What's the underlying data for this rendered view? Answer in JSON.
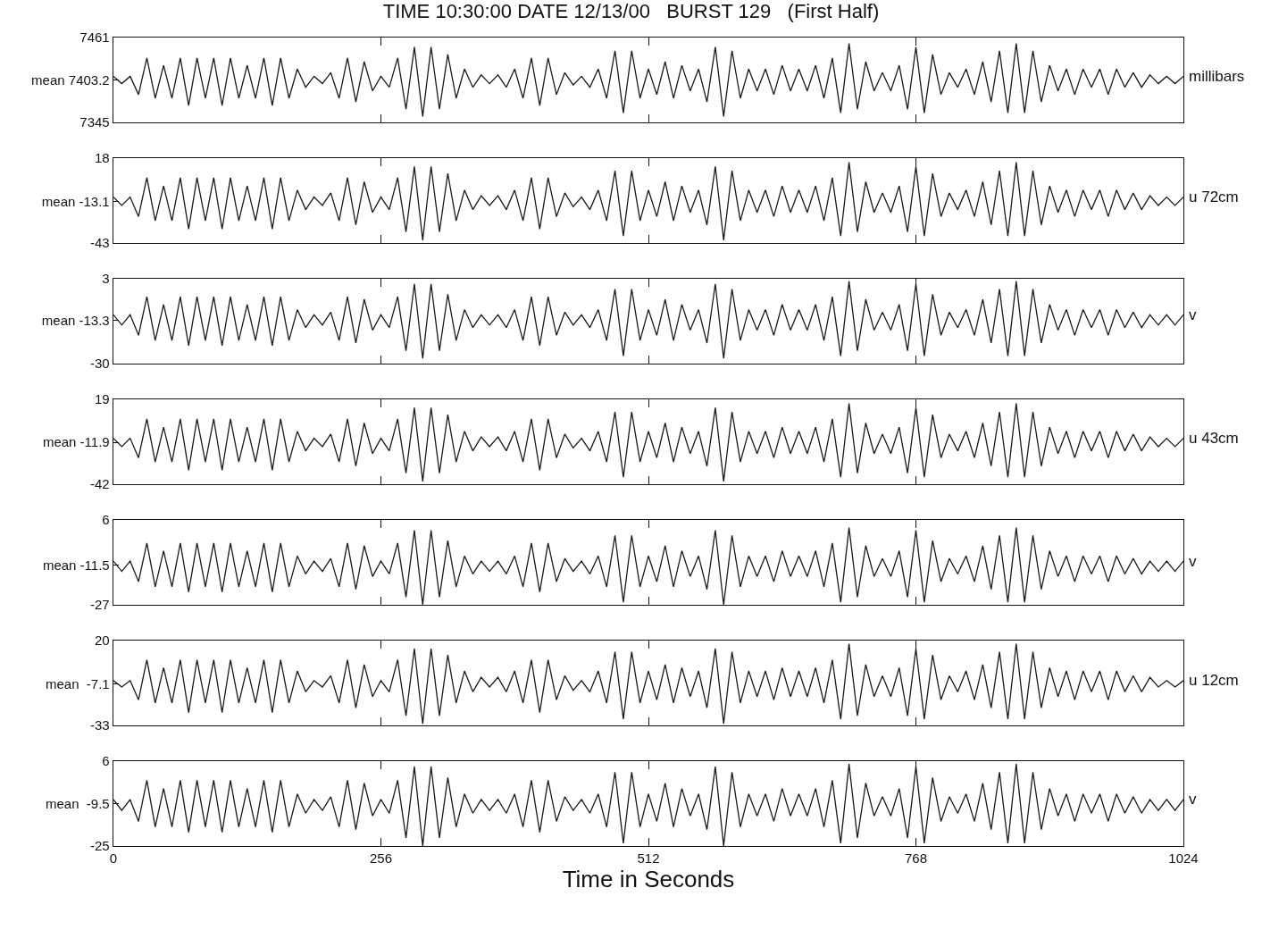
{
  "chart_data": [
    {
      "type": "line",
      "title": "TIME 10:30:00 DATE 12/13/00   BURST 129   (First Half)",
      "x": [
        0,
        8,
        16,
        24,
        32,
        40,
        48,
        56,
        64,
        72,
        80,
        88,
        96,
        104,
        112,
        120,
        128,
        136,
        144,
        152,
        160,
        168,
        176,
        184,
        192,
        200,
        208,
        216,
        224,
        232,
        240,
        248,
        256,
        264,
        272,
        280,
        288,
        296,
        304,
        312,
        320,
        328,
        336,
        344,
        352,
        360,
        368,
        376,
        384,
        392,
        400,
        408,
        416,
        424,
        432,
        440,
        448,
        456,
        464,
        472,
        480,
        488,
        496,
        504,
        512,
        520,
        528,
        536,
        544,
        552,
        560,
        568,
        576,
        584,
        592,
        600,
        608,
        616,
        624,
        632,
        640,
        648,
        656,
        664,
        672,
        680,
        688,
        696,
        704,
        712,
        720,
        728,
        736,
        744,
        752,
        760,
        768,
        776,
        784,
        792,
        800,
        808,
        816,
        824,
        832,
        840,
        848,
        856,
        864,
        872,
        880,
        888,
        896,
        904,
        912,
        920,
        928,
        936,
        944,
        952,
        960,
        968,
        976,
        984,
        992,
        1000,
        1008,
        1016,
        1024
      ],
      "series": [
        {
          "name": "millibars",
          "color": "#1a1a1a",
          "values": [
            7408,
            7398,
            7408,
            7383,
            7433,
            7378,
            7423,
            7378,
            7433,
            7368,
            7433,
            7378,
            7433,
            7368,
            7433,
            7378,
            7423,
            7378,
            7433,
            7368,
            7433,
            7378,
            7418,
            7393,
            7408,
            7398,
            7413,
            7378,
            7433,
            7373,
            7428,
            7388,
            7408,
            7393,
            7433,
            7363,
            7448,
            7353,
            7448,
            7363,
            7438,
            7378,
            7418,
            7393,
            7410,
            7398,
            7410,
            7393,
            7418,
            7378,
            7433,
            7368,
            7433,
            7383,
            7413,
            7396,
            7408,
            7393,
            7418,
            7378,
            7443,
            7358,
            7443,
            7378,
            7418,
            7383,
            7428,
            7378,
            7423,
            7388,
            7418,
            7373,
            7448,
            7353,
            7443,
            7378,
            7418,
            7388,
            7418,
            7383,
            7423,
            7388,
            7418,
            7388,
            7423,
            7378,
            7433,
            7358,
            7453,
            7363,
            7428,
            7388,
            7413,
            7388,
            7423,
            7363,
            7448,
            7358,
            7438,
            7383,
            7413,
            7393,
            7418,
            7383,
            7428,
            7373,
            7443,
            7358,
            7453,
            7358,
            7443,
            7373,
            7423,
            7388,
            7418,
            7383,
            7418,
            7393,
            7418,
            7383,
            7418,
            7393,
            7413,
            7393,
            7410,
            7398,
            7408,
            7398,
            7408
          ]
        }
      ],
      "xlim": [
        0,
        1024
      ],
      "xticks": [
        0,
        256,
        512,
        768,
        1024
      ],
      "ylim": [
        7345,
        7461
      ],
      "yticks": [
        7345,
        {
          "value": 7403.2,
          "label": "mean 7403.2"
        },
        7461
      ],
      "tick_labels": "y"
    },
    {
      "type": "line",
      "x": [
        0,
        8,
        16,
        24,
        32,
        40,
        48,
        56,
        64,
        72,
        80,
        88,
        96,
        104,
        112,
        120,
        128,
        136,
        144,
        152,
        160,
        168,
        176,
        184,
        192,
        200,
        208,
        216,
        224,
        232,
        240,
        248,
        256,
        264,
        272,
        280,
        288,
        296,
        304,
        312,
        320,
        328,
        336,
        344,
        352,
        360,
        368,
        376,
        384,
        392,
        400,
        408,
        416,
        424,
        432,
        440,
        448,
        456,
        464,
        472,
        480,
        488,
        496,
        504,
        512,
        520,
        528,
        536,
        544,
        552,
        560,
        568,
        576,
        584,
        592,
        600,
        608,
        616,
        624,
        632,
        640,
        648,
        656,
        664,
        672,
        680,
        688,
        696,
        704,
        712,
        720,
        728,
        736,
        744,
        752,
        760,
        768,
        776,
        784,
        792,
        800,
        808,
        816,
        824,
        832,
        840,
        848,
        856,
        864,
        872,
        880,
        888,
        896,
        904,
        912,
        920,
        928,
        936,
        944,
        952,
        960,
        968,
        976,
        984,
        992,
        1000,
        1008,
        1016,
        1024
      ],
      "series": [
        {
          "name": "u 72cm",
          "color": "#1a1a1a",
          "values": [
            -10,
            -16,
            -10,
            -24,
            4,
            -27,
            -2,
            -27,
            4,
            -33,
            4,
            -27,
            4,
            -33,
            4,
            -27,
            -2,
            -27,
            4,
            -33,
            4,
            -27,
            -5,
            -19,
            -10,
            -16,
            -7,
            -27,
            4,
            -30,
            1,
            -21,
            -10,
            -19,
            4,
            -35,
            12,
            -41,
            12,
            -35,
            7,
            -27,
            -5,
            -19,
            -9,
            -16,
            -9,
            -19,
            -5,
            -27,
            4,
            -33,
            4,
            -24,
            -7,
            -17,
            -10,
            -19,
            -5,
            -27,
            9,
            -38,
            9,
            -27,
            -5,
            -24,
            1,
            -27,
            -2,
            -21,
            -5,
            -30,
            12,
            -41,
            9,
            -27,
            -5,
            -21,
            -5,
            -24,
            -2,
            -21,
            -5,
            -21,
            -2,
            -27,
            4,
            -38,
            15,
            -35,
            1,
            -21,
            -7,
            -21,
            -2,
            -35,
            12,
            -38,
            7,
            -24,
            -7,
            -19,
            -5,
            -24,
            1,
            -30,
            9,
            -38,
            15,
            -38,
            9,
            -30,
            -2,
            -21,
            -5,
            -24,
            -5,
            -19,
            -5,
            -24,
            -5,
            -19,
            -7,
            -19,
            -9,
            -16,
            -10,
            -16,
            -10
          ]
        }
      ],
      "xlim": [
        0,
        1024
      ],
      "xticks": [
        0,
        256,
        512,
        768,
        1024
      ],
      "ylim": [
        -43,
        18
      ],
      "yticks": [
        -43,
        {
          "value": -13.1,
          "label": "mean -13.1"
        },
        18
      ],
      "tick_labels": "y"
    },
    {
      "type": "line",
      "x": [
        0,
        8,
        16,
        24,
        32,
        40,
        48,
        56,
        64,
        72,
        80,
        88,
        96,
        104,
        112,
        120,
        128,
        136,
        144,
        152,
        160,
        168,
        176,
        184,
        192,
        200,
        208,
        216,
        224,
        232,
        240,
        248,
        256,
        264,
        272,
        280,
        288,
        296,
        304,
        312,
        320,
        328,
        336,
        344,
        352,
        360,
        368,
        376,
        384,
        392,
        400,
        408,
        416,
        424,
        432,
        440,
        448,
        456,
        464,
        472,
        480,
        488,
        496,
        504,
        512,
        520,
        528,
        536,
        544,
        552,
        560,
        568,
        576,
        584,
        592,
        600,
        608,
        616,
        624,
        632,
        640,
        648,
        656,
        664,
        672,
        680,
        688,
        696,
        704,
        712,
        720,
        728,
        736,
        744,
        752,
        760,
        768,
        776,
        784,
        792,
        800,
        808,
        816,
        824,
        832,
        840,
        848,
        856,
        864,
        872,
        880,
        888,
        896,
        904,
        912,
        920,
        928,
        936,
        944,
        952,
        960,
        968,
        976,
        984,
        992,
        1000,
        1008,
        1016,
        1024
      ],
      "series": [
        {
          "name": "v",
          "color": "#1a1a1a",
          "values": [
            -11,
            -15,
            -11,
            -19,
            -4,
            -21,
            -7,
            -21,
            -4,
            -23,
            -4,
            -21,
            -4,
            -23,
            -4,
            -21,
            -7,
            -21,
            -4,
            -23,
            -4,
            -21,
            -9,
            -16,
            -11,
            -15,
            -10,
            -21,
            -4,
            -22,
            -5,
            -17,
            -11,
            -16,
            -4,
            -25,
            1,
            -28,
            1,
            -25,
            -3,
            -21,
            -9,
            -16,
            -11,
            -15,
            -11,
            -16,
            -9,
            -21,
            -4,
            -23,
            -4,
            -19,
            -10,
            -15,
            -11,
            -16,
            -9,
            -21,
            -1,
            -27,
            -1,
            -21,
            -9,
            -19,
            -5,
            -21,
            -7,
            -17,
            -9,
            -22,
            1,
            -28,
            -1,
            -21,
            -9,
            -17,
            -9,
            -19,
            -7,
            -17,
            -9,
            -17,
            -7,
            -21,
            -4,
            -27,
            2,
            -25,
            -5,
            -17,
            -10,
            -17,
            -7,
            -25,
            1,
            -27,
            -3,
            -19,
            -10,
            -16,
            -9,
            -19,
            -5,
            -22,
            -1,
            -27,
            2,
            -27,
            -1,
            -22,
            -7,
            -17,
            -9,
            -19,
            -9,
            -16,
            -9,
            -19,
            -9,
            -16,
            -10,
            -16,
            -11,
            -15,
            -11,
            -15,
            -11
          ]
        }
      ],
      "xlim": [
        0,
        1024
      ],
      "xticks": [
        0,
        256,
        512,
        768,
        1024
      ],
      "ylim": [
        -30,
        3
      ],
      "yticks": [
        -30,
        {
          "value": -13.3,
          "label": "mean -13.3"
        },
        3
      ],
      "tick_labels": "y"
    },
    {
      "type": "line",
      "x": [
        0,
        8,
        16,
        24,
        32,
        40,
        48,
        56,
        64,
        72,
        80,
        88,
        96,
        104,
        112,
        120,
        128,
        136,
        144,
        152,
        160,
        168,
        176,
        184,
        192,
        200,
        208,
        216,
        224,
        232,
        240,
        248,
        256,
        264,
        272,
        280,
        288,
        296,
        304,
        312,
        320,
        328,
        336,
        344,
        352,
        360,
        368,
        376,
        384,
        392,
        400,
        408,
        416,
        424,
        432,
        440,
        448,
        456,
        464,
        472,
        480,
        488,
        496,
        504,
        512,
        520,
        528,
        536,
        544,
        552,
        560,
        568,
        576,
        584,
        592,
        600,
        608,
        616,
        624,
        632,
        640,
        648,
        656,
        664,
        672,
        680,
        688,
        696,
        704,
        712,
        720,
        728,
        736,
        744,
        752,
        760,
        768,
        776,
        784,
        792,
        800,
        808,
        816,
        824,
        832,
        840,
        848,
        856,
        864,
        872,
        880,
        888,
        896,
        904,
        912,
        920,
        928,
        936,
        944,
        952,
        960,
        968,
        976,
        984,
        992,
        1000,
        1008,
        1016,
        1024
      ],
      "series": [
        {
          "name": "u 43cm",
          "color": "#1a1a1a",
          "values": [
            -9,
            -15,
            -9,
            -23,
            5,
            -26,
            -1,
            -26,
            5,
            -32,
            5,
            -26,
            5,
            -32,
            5,
            -26,
            -1,
            -26,
            5,
            -32,
            5,
            -26,
            -4,
            -18,
            -9,
            -15,
            -6,
            -26,
            5,
            -29,
            2,
            -20,
            -9,
            -18,
            5,
            -34,
            13,
            -40,
            13,
            -34,
            8,
            -26,
            -4,
            -18,
            -8,
            -15,
            -8,
            -18,
            -4,
            -26,
            5,
            -32,
            5,
            -23,
            -6,
            -16,
            -9,
            -18,
            -4,
            -26,
            10,
            -37,
            10,
            -26,
            -4,
            -23,
            2,
            -26,
            -1,
            -20,
            -4,
            -29,
            13,
            -40,
            10,
            -26,
            -4,
            -20,
            -4,
            -23,
            -1,
            -20,
            -4,
            -20,
            -1,
            -26,
            5,
            -37,
            16,
            -34,
            2,
            -20,
            -6,
            -20,
            -1,
            -34,
            13,
            -37,
            8,
            -23,
            -6,
            -18,
            -4,
            -23,
            2,
            -29,
            10,
            -37,
            16,
            -37,
            10,
            -29,
            -1,
            -20,
            -4,
            -23,
            -4,
            -18,
            -4,
            -23,
            -4,
            -18,
            -6,
            -18,
            -8,
            -15,
            -9,
            -15,
            -9
          ]
        }
      ],
      "xlim": [
        0,
        1024
      ],
      "xticks": [
        0,
        256,
        512,
        768,
        1024
      ],
      "ylim": [
        -42,
        19
      ],
      "yticks": [
        -42,
        {
          "value": -11.9,
          "label": "mean -11.9"
        },
        19
      ],
      "tick_labels": "y"
    },
    {
      "type": "line",
      "x": [
        0,
        8,
        16,
        24,
        32,
        40,
        48,
        56,
        64,
        72,
        80,
        88,
        96,
        104,
        112,
        120,
        128,
        136,
        144,
        152,
        160,
        168,
        176,
        184,
        192,
        200,
        208,
        216,
        224,
        232,
        240,
        248,
        256,
        264,
        272,
        280,
        288,
        296,
        304,
        312,
        320,
        328,
        336,
        344,
        352,
        360,
        368,
        376,
        384,
        392,
        400,
        408,
        416,
        424,
        432,
        440,
        448,
        456,
        464,
        472,
        480,
        488,
        496,
        504,
        512,
        520,
        528,
        536,
        544,
        552,
        560,
        568,
        576,
        584,
        592,
        600,
        608,
        616,
        624,
        632,
        640,
        648,
        656,
        664,
        672,
        680,
        688,
        696,
        704,
        712,
        720,
        728,
        736,
        744,
        752,
        760,
        768,
        776,
        784,
        792,
        800,
        808,
        816,
        824,
        832,
        840,
        848,
        856,
        864,
        872,
        880,
        888,
        896,
        904,
        912,
        920,
        928,
        936,
        944,
        952,
        960,
        968,
        976,
        984,
        992,
        1000,
        1008,
        1016,
        1024
      ],
      "series": [
        {
          "name": "v",
          "color": "#1a1a1a",
          "values": [
            -10,
            -14,
            -10,
            -18,
            -3,
            -20,
            -6,
            -20,
            -3,
            -22,
            -3,
            -20,
            -3,
            -22,
            -3,
            -20,
            -6,
            -20,
            -3,
            -22,
            -3,
            -20,
            -8,
            -15,
            -10,
            -14,
            -9,
            -20,
            -3,
            -21,
            -4,
            -16,
            -10,
            -15,
            -3,
            -24,
            2,
            -27,
            2,
            -24,
            -2,
            -20,
            -8,
            -15,
            -10,
            -14,
            -10,
            -15,
            -8,
            -20,
            -3,
            -22,
            -3,
            -18,
            -9,
            -14,
            -10,
            -15,
            -8,
            -20,
            0,
            -26,
            0,
            -20,
            -8,
            -18,
            -4,
            -20,
            -6,
            -16,
            -8,
            -21,
            2,
            -27,
            0,
            -20,
            -8,
            -16,
            -8,
            -18,
            -6,
            -16,
            -8,
            -16,
            -6,
            -20,
            -3,
            -26,
            3,
            -24,
            -4,
            -16,
            -9,
            -16,
            -6,
            -24,
            2,
            -26,
            -2,
            -18,
            -9,
            -15,
            -8,
            -18,
            -4,
            -21,
            0,
            -26,
            3,
            -26,
            0,
            -21,
            -6,
            -16,
            -8,
            -18,
            -8,
            -15,
            -8,
            -18,
            -8,
            -15,
            -9,
            -15,
            -10,
            -14,
            -10,
            -14,
            -10
          ]
        }
      ],
      "xlim": [
        0,
        1024
      ],
      "xticks": [
        0,
        256,
        512,
        768,
        1024
      ],
      "ylim": [
        -27,
        6
      ],
      "yticks": [
        -27,
        {
          "value": -11.5,
          "label": "mean -11.5"
        },
        6
      ],
      "tick_labels": "y"
    },
    {
      "type": "line",
      "x": [
        0,
        8,
        16,
        24,
        32,
        40,
        48,
        56,
        64,
        72,
        80,
        88,
        96,
        104,
        112,
        120,
        128,
        136,
        144,
        152,
        160,
        168,
        176,
        184,
        192,
        200,
        208,
        216,
        224,
        232,
        240,
        248,
        256,
        264,
        272,
        280,
        288,
        296,
        304,
        312,
        320,
        328,
        336,
        344,
        352,
        360,
        368,
        376,
        384,
        392,
        400,
        408,
        416,
        424,
        432,
        440,
        448,
        456,
        464,
        472,
        480,
        488,
        496,
        504,
        512,
        520,
        528,
        536,
        544,
        552,
        560,
        568,
        576,
        584,
        592,
        600,
        608,
        616,
        624,
        632,
        640,
        648,
        656,
        664,
        672,
        680,
        688,
        696,
        704,
        712,
        720,
        728,
        736,
        744,
        752,
        760,
        768,
        776,
        784,
        792,
        800,
        808,
        816,
        824,
        832,
        840,
        848,
        856,
        864,
        872,
        880,
        888,
        896,
        904,
        912,
        920,
        928,
        936,
        944,
        952,
        960,
        968,
        976,
        984,
        992,
        1000,
        1008,
        1016,
        1024
      ],
      "series": [
        {
          "name": "u 12cm",
          "color": "#1a1a1a",
          "values": [
            -5,
            -9,
            -5,
            -17,
            8,
            -19,
            3,
            -19,
            8,
            -25,
            8,
            -19,
            8,
            -25,
            8,
            -19,
            3,
            -19,
            8,
            -25,
            8,
            -19,
            1,
            -12,
            -5,
            -9,
            -2,
            -19,
            8,
            -22,
            5,
            -15,
            -5,
            -12,
            8,
            -27,
            15,
            -32,
            15,
            -27,
            11,
            -19,
            1,
            -12,
            -3,
            -9,
            -3,
            -12,
            1,
            -19,
            8,
            -25,
            8,
            -17,
            -2,
            -11,
            -5,
            -12,
            1,
            -19,
            13,
            -29,
            13,
            -19,
            1,
            -17,
            5,
            -19,
            3,
            -15,
            1,
            -22,
            15,
            -32,
            13,
            -19,
            1,
            -15,
            1,
            -17,
            3,
            -15,
            1,
            -15,
            3,
            -19,
            8,
            -29,
            18,
            -27,
            5,
            -15,
            -2,
            -15,
            3,
            -27,
            15,
            -29,
            11,
            -17,
            -2,
            -12,
            1,
            -17,
            5,
            -22,
            13,
            -29,
            18,
            -29,
            13,
            -22,
            3,
            -15,
            1,
            -17,
            1,
            -12,
            1,
            -17,
            1,
            -12,
            -2,
            -12,
            -3,
            -9,
            -5,
            -9,
            -5
          ]
        }
      ],
      "xlim": [
        0,
        1024
      ],
      "xticks": [
        0,
        256,
        512,
        768,
        1024
      ],
      "ylim": [
        -33,
        20
      ],
      "yticks": [
        -33,
        {
          "value": -7.1,
          "label": "mean  -7.1"
        },
        20
      ],
      "tick_labels": "y"
    },
    {
      "type": "line",
      "xlabel": "Time in Seconds",
      "x": [
        0,
        8,
        16,
        24,
        32,
        40,
        48,
        56,
        64,
        72,
        80,
        88,
        96,
        104,
        112,
        120,
        128,
        136,
        144,
        152,
        160,
        168,
        176,
        184,
        192,
        200,
        208,
        216,
        224,
        232,
        240,
        248,
        256,
        264,
        272,
        280,
        288,
        296,
        304,
        312,
        320,
        328,
        336,
        344,
        352,
        360,
        368,
        376,
        384,
        392,
        400,
        408,
        416,
        424,
        432,
        440,
        448,
        456,
        464,
        472,
        480,
        488,
        496,
        504,
        512,
        520,
        528,
        536,
        544,
        552,
        560,
        568,
        576,
        584,
        592,
        600,
        608,
        616,
        624,
        632,
        640,
        648,
        656,
        664,
        672,
        680,
        688,
        696,
        704,
        712,
        720,
        728,
        736,
        744,
        752,
        760,
        768,
        776,
        784,
        792,
        800,
        808,
        816,
        824,
        832,
        840,
        848,
        856,
        864,
        872,
        880,
        888,
        896,
        904,
        912,
        920,
        928,
        936,
        944,
        952,
        960,
        968,
        976,
        984,
        992,
        1000,
        1008,
        1016,
        1024
      ],
      "series": [
        {
          "name": "v",
          "color": "#1a1a1a",
          "values": [
            -8,
            -12,
            -8,
            -16,
            -1,
            -18,
            -4,
            -18,
            -1,
            -20,
            -1,
            -18,
            -1,
            -20,
            -1,
            -18,
            -4,
            -18,
            -1,
            -20,
            -1,
            -18,
            -6,
            -13,
            -8,
            -12,
            -7,
            -18,
            -1,
            -19,
            -2,
            -14,
            -8,
            -13,
            -1,
            -22,
            4,
            -25,
            4,
            -22,
            0,
            -18,
            -6,
            -13,
            -8,
            -12,
            -8,
            -13,
            -6,
            -18,
            -1,
            -20,
            -1,
            -16,
            -7,
            -12,
            -8,
            -13,
            -6,
            -18,
            2,
            -24,
            2,
            -18,
            -6,
            -16,
            -2,
            -18,
            -4,
            -14,
            -6,
            -19,
            4,
            -25,
            2,
            -18,
            -6,
            -14,
            -6,
            -16,
            -4,
            -14,
            -6,
            -14,
            -4,
            -18,
            -1,
            -24,
            5,
            -22,
            -2,
            -14,
            -7,
            -14,
            -4,
            -22,
            4,
            -24,
            0,
            -16,
            -7,
            -13,
            -6,
            -16,
            -2,
            -19,
            2,
            -24,
            5,
            -24,
            2,
            -19,
            -4,
            -14,
            -6,
            -16,
            -6,
            -13,
            -6,
            -16,
            -6,
            -13,
            -7,
            -13,
            -8,
            -12,
            -8,
            -12,
            -8
          ]
        }
      ],
      "xlim": [
        0,
        1024
      ],
      "xticks": [
        0,
        256,
        512,
        768,
        1024
      ],
      "ylim": [
        -25,
        6
      ],
      "yticks": [
        -25,
        {
          "value": -9.5,
          "label": "mean  -9.5"
        },
        6
      ]
    }
  ]
}
